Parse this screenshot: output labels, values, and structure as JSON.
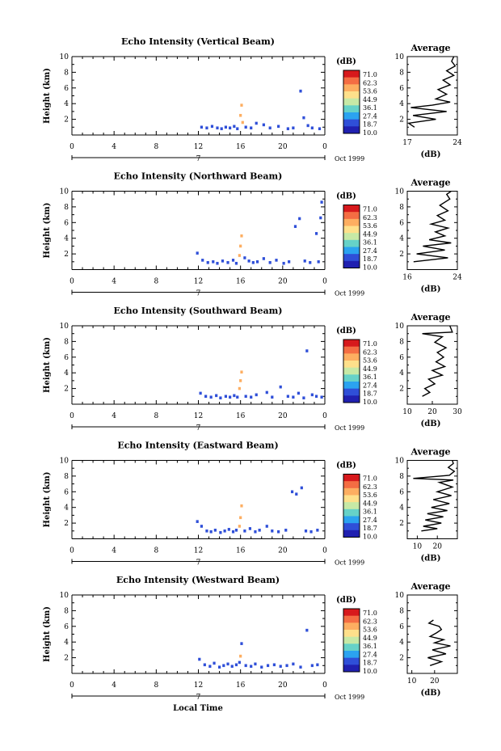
{
  "chart_data": {
    "type": "heatmap",
    "x_label": "Local Time",
    "x_ticks": [
      "0",
      "4",
      "8",
      "12",
      "16",
      "20",
      "0"
    ],
    "date_labels": [
      "7",
      "Oct 1999"
    ],
    "y_label": "Height (km)",
    "y_ticks": [
      "2",
      "4",
      "6",
      "8",
      "10"
    ],
    "colorbar": {
      "unit": "(dB)",
      "labels": [
        "71.0",
        "62.3",
        "53.6",
        "44.9",
        "36.1",
        "27.4",
        "18.7",
        "10.0"
      ],
      "colors": [
        "#d7191c",
        "#f46d43",
        "#fdae61",
        "#fee08b",
        "#c7e9a6",
        "#66d2c8",
        "#2ba3f0",
        "#2f4fd8",
        "#2020b0"
      ]
    },
    "average": {
      "title": "Average",
      "x_label": "(dB)",
      "y_ticks": [
        "2",
        "4",
        "6",
        "8",
        "10"
      ]
    },
    "panels": [
      {
        "title": "Echo Intensity (Vertical Beam)",
        "avg_ticks": [
          "17",
          "24"
        ],
        "avg_range": [
          17,
          24
        ],
        "cells": [
          [
            12.3,
            1.0,
            1
          ],
          [
            12.8,
            0.9,
            1
          ],
          [
            13.3,
            1.1,
            1
          ],
          [
            13.8,
            0.9,
            1
          ],
          [
            14.2,
            0.8,
            1
          ],
          [
            14.6,
            1.0,
            1
          ],
          [
            15.0,
            0.9,
            1
          ],
          [
            15.4,
            1.1,
            1
          ],
          [
            15.7,
            0.8,
            1
          ],
          [
            16.0,
            2.5,
            6
          ],
          [
            16.1,
            3.8,
            6
          ],
          [
            16.2,
            1.6,
            6
          ],
          [
            16.5,
            1.0,
            1
          ],
          [
            17.0,
            0.9,
            1
          ],
          [
            17.5,
            1.5,
            1
          ],
          [
            18.2,
            1.3,
            1
          ],
          [
            18.8,
            0.9,
            1
          ],
          [
            19.6,
            1.1,
            1
          ],
          [
            20.5,
            0.8,
            1
          ],
          [
            21.0,
            0.9,
            1
          ],
          [
            21.7,
            5.6,
            1
          ],
          [
            22.0,
            2.2,
            1
          ],
          [
            22.4,
            1.2,
            1
          ],
          [
            22.8,
            0.9,
            1
          ],
          [
            23.5,
            0.8,
            1
          ]
        ],
        "avg": [
          [
            18.0,
            1.0
          ],
          [
            17.2,
            1.5
          ],
          [
            21.0,
            2.0
          ],
          [
            17.8,
            2.5
          ],
          [
            22.5,
            3.0
          ],
          [
            17.5,
            3.5
          ],
          [
            20.5,
            3.8
          ],
          [
            23.0,
            4.2
          ],
          [
            21.0,
            4.6
          ],
          [
            22.5,
            5.2
          ],
          [
            21.3,
            5.8
          ],
          [
            23.0,
            6.4
          ],
          [
            22.0,
            7.0
          ],
          [
            23.5,
            7.6
          ],
          [
            22.5,
            8.2
          ],
          [
            23.7,
            8.8
          ],
          [
            23.2,
            9.4
          ],
          [
            23.5,
            10.0
          ]
        ]
      },
      {
        "title": "Echo Intensity (Northward Beam)",
        "avg_ticks": [
          "16",
          "24"
        ],
        "avg_range": [
          16,
          24
        ],
        "cells": [
          [
            11.9,
            2.1,
            1
          ],
          [
            12.4,
            1.2,
            1
          ],
          [
            12.9,
            0.9,
            1
          ],
          [
            13.4,
            1.0,
            1
          ],
          [
            13.8,
            0.8,
            1
          ],
          [
            14.3,
            1.1,
            1
          ],
          [
            14.8,
            0.9,
            1
          ],
          [
            15.3,
            1.2,
            1
          ],
          [
            15.6,
            0.8,
            1
          ],
          [
            15.9,
            1.8,
            6
          ],
          [
            16.0,
            3.0,
            6
          ],
          [
            16.1,
            4.3,
            6
          ],
          [
            16.4,
            1.5,
            1
          ],
          [
            16.8,
            1.1,
            1
          ],
          [
            17.2,
            0.9,
            1
          ],
          [
            17.6,
            1.0,
            1
          ],
          [
            18.2,
            1.4,
            1
          ],
          [
            18.8,
            0.9,
            1
          ],
          [
            19.4,
            1.2,
            1
          ],
          [
            20.1,
            0.8,
            1
          ],
          [
            20.6,
            1.0,
            1
          ],
          [
            21.2,
            5.5,
            1
          ],
          [
            21.6,
            6.5,
            1
          ],
          [
            22.1,
            1.1,
            1
          ],
          [
            22.6,
            0.9,
            1
          ],
          [
            23.2,
            4.6,
            1
          ],
          [
            23.6,
            6.6,
            1
          ],
          [
            23.7,
            8.6,
            1
          ],
          [
            23.4,
            1.0,
            1
          ]
        ],
        "avg": [
          [
            17.0,
            1.0
          ],
          [
            22.5,
            1.5
          ],
          [
            17.5,
            2.0
          ],
          [
            22.0,
            2.5
          ],
          [
            18.5,
            3.0
          ],
          [
            23.0,
            3.4
          ],
          [
            19.5,
            3.8
          ],
          [
            22.0,
            4.3
          ],
          [
            20.5,
            4.8
          ],
          [
            22.5,
            5.3
          ],
          [
            19.8,
            5.8
          ],
          [
            22.0,
            6.3
          ],
          [
            20.8,
            6.9
          ],
          [
            22.5,
            7.5
          ],
          [
            21.2,
            8.2
          ],
          [
            22.8,
            9.0
          ],
          [
            22.3,
            9.6
          ],
          [
            23.0,
            10.0
          ]
        ]
      },
      {
        "title": "Echo Intensity (Southward Beam)",
        "avg_ticks": [
          "10",
          "20",
          "30"
        ],
        "avg_range": [
          10,
          30
        ],
        "cells": [
          [
            12.2,
            1.4,
            1
          ],
          [
            12.7,
            1.0,
            1
          ],
          [
            13.2,
            0.9,
            1
          ],
          [
            13.7,
            1.1,
            1
          ],
          [
            14.1,
            0.8,
            1
          ],
          [
            14.6,
            1.0,
            1
          ],
          [
            15.0,
            0.9,
            1
          ],
          [
            15.4,
            1.1,
            1
          ],
          [
            15.7,
            0.9,
            1
          ],
          [
            15.9,
            2.0,
            6
          ],
          [
            16.0,
            3.0,
            6
          ],
          [
            16.1,
            4.1,
            6
          ],
          [
            16.5,
            1.0,
            1
          ],
          [
            17.0,
            0.9,
            1
          ],
          [
            17.5,
            1.2,
            1
          ],
          [
            18.5,
            1.5,
            1
          ],
          [
            19.0,
            0.9,
            1
          ],
          [
            19.8,
            2.2,
            1
          ],
          [
            20.5,
            1.0,
            1
          ],
          [
            21.0,
            0.9,
            1
          ],
          [
            21.5,
            1.4,
            1
          ],
          [
            22.0,
            0.8,
            1
          ],
          [
            22.3,
            6.8,
            1
          ],
          [
            22.8,
            1.2,
            1
          ],
          [
            23.2,
            1.0,
            1
          ],
          [
            23.7,
            0.9,
            1
          ]
        ],
        "avg": [
          [
            16.0,
            1.0
          ],
          [
            19.0,
            1.5
          ],
          [
            17.0,
            2.0
          ],
          [
            21.0,
            2.6
          ],
          [
            18.5,
            3.2
          ],
          [
            24.0,
            3.7
          ],
          [
            20.0,
            4.3
          ],
          [
            25.0,
            4.8
          ],
          [
            21.5,
            5.4
          ],
          [
            24.5,
            6.0
          ],
          [
            22.0,
            6.6
          ],
          [
            25.5,
            7.2
          ],
          [
            21.0,
            7.9
          ],
          [
            24.0,
            8.6
          ],
          [
            16.0,
            9.0
          ],
          [
            28.0,
            9.2
          ],
          [
            27.0,
            10.0
          ]
        ]
      },
      {
        "title": "Echo Intensity (Eastward Beam)",
        "avg_ticks": [
          "10",
          "20"
        ],
        "avg_range": [
          5,
          30
        ],
        "cells": [
          [
            11.9,
            2.2,
            1
          ],
          [
            12.3,
            1.6,
            1
          ],
          [
            12.8,
            1.0,
            1
          ],
          [
            13.2,
            0.9,
            1
          ],
          [
            13.6,
            1.1,
            1
          ],
          [
            14.1,
            0.8,
            1
          ],
          [
            14.5,
            1.0,
            1
          ],
          [
            14.9,
            1.2,
            1
          ],
          [
            15.3,
            0.9,
            1
          ],
          [
            15.6,
            1.1,
            1
          ],
          [
            15.9,
            1.6,
            6
          ],
          [
            16.0,
            2.7,
            6
          ],
          [
            16.1,
            4.2,
            6
          ],
          [
            16.4,
            1.0,
            1
          ],
          [
            16.9,
            1.3,
            1
          ],
          [
            17.4,
            0.9,
            1
          ],
          [
            17.8,
            1.1,
            1
          ],
          [
            18.5,
            1.6,
            1
          ],
          [
            19.0,
            1.0,
            1
          ],
          [
            19.6,
            0.9,
            1
          ],
          [
            20.3,
            1.1,
            1
          ],
          [
            20.9,
            6.0,
            1
          ],
          [
            21.3,
            5.7,
            1
          ],
          [
            21.8,
            6.5,
            1
          ],
          [
            22.2,
            1.0,
            1
          ],
          [
            22.7,
            0.9,
            1
          ],
          [
            23.3,
            1.1,
            1
          ]
        ],
        "avg": [
          [
            12.0,
            1.0
          ],
          [
            20.0,
            1.3
          ],
          [
            13.0,
            1.6
          ],
          [
            22.0,
            2.0
          ],
          [
            14.0,
            2.4
          ],
          [
            23.0,
            2.8
          ],
          [
            15.0,
            3.2
          ],
          [
            25.0,
            3.6
          ],
          [
            17.0,
            4.0
          ],
          [
            26.0,
            4.5
          ],
          [
            18.0,
            5.0
          ],
          [
            27.0,
            5.5
          ],
          [
            20.0,
            6.0
          ],
          [
            27.5,
            6.6
          ],
          [
            21.0,
            7.2
          ],
          [
            28.0,
            7.5
          ],
          [
            8.0,
            7.7
          ],
          [
            26.0,
            8.1
          ],
          [
            28.5,
            8.6
          ],
          [
            25.5,
            9.1
          ],
          [
            28.0,
            9.6
          ],
          [
            27.5,
            10.0
          ]
        ]
      },
      {
        "title": "Echo Intensity (Westward Beam)",
        "avg_ticks": [
          "10",
          "20"
        ],
        "avg_range": [
          8,
          30
        ],
        "cells": [
          [
            12.1,
            1.8,
            1
          ],
          [
            12.6,
            1.1,
            1
          ],
          [
            13.1,
            0.9,
            1
          ],
          [
            13.5,
            1.3,
            1
          ],
          [
            14.0,
            0.8,
            1
          ],
          [
            14.4,
            1.0,
            1
          ],
          [
            14.8,
            1.2,
            1
          ],
          [
            15.2,
            0.9,
            1
          ],
          [
            15.6,
            1.1,
            1
          ],
          [
            15.9,
            1.4,
            1
          ],
          [
            16.0,
            2.2,
            6
          ],
          [
            16.1,
            3.8,
            1
          ],
          [
            16.5,
            1.0,
            1
          ],
          [
            17.0,
            0.9,
            1
          ],
          [
            17.4,
            1.2,
            1
          ],
          [
            18.0,
            0.8,
            1
          ],
          [
            18.6,
            1.0,
            1
          ],
          [
            19.2,
            1.1,
            1
          ],
          [
            19.8,
            0.9,
            1
          ],
          [
            20.4,
            1.0,
            1
          ],
          [
            21.0,
            1.2,
            1
          ],
          [
            21.7,
            0.8,
            1
          ],
          [
            22.3,
            5.5,
            1
          ],
          [
            22.8,
            1.0,
            1
          ],
          [
            23.3,
            1.1,
            1
          ]
        ],
        "avg": [
          [
            18.0,
            1.0
          ],
          [
            23.0,
            1.5
          ],
          [
            17.0,
            2.0
          ],
          [
            25.0,
            2.5
          ],
          [
            19.0,
            3.0
          ],
          [
            27.0,
            3.5
          ],
          [
            20.0,
            3.9
          ],
          [
            24.0,
            4.3
          ],
          [
            18.0,
            4.7
          ],
          [
            21.0,
            5.2
          ],
          [
            23.0,
            5.6
          ],
          [
            22.0,
            6.0
          ],
          [
            17.5,
            6.4
          ],
          [
            19.5,
            6.8
          ]
        ]
      }
    ]
  }
}
